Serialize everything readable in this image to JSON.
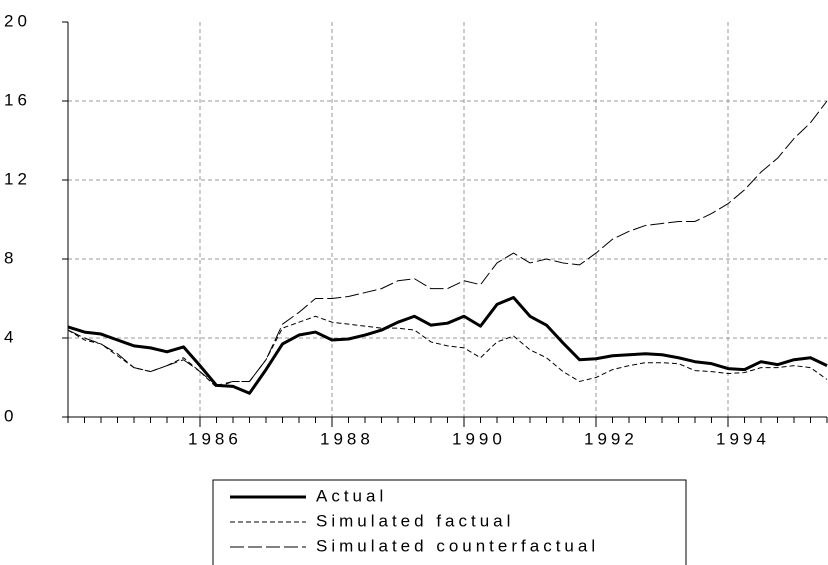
{
  "chart_data": {
    "type": "line",
    "x": [
      1984,
      1984.25,
      1984.5,
      1984.75,
      1985,
      1985.25,
      1985.5,
      1985.75,
      1986,
      1986.25,
      1986.5,
      1986.75,
      1987,
      1987.25,
      1987.5,
      1987.75,
      1988,
      1988.25,
      1988.5,
      1988.75,
      1989,
      1989.25,
      1989.5,
      1989.75,
      1990,
      1990.25,
      1990.5,
      1990.75,
      1991,
      1991.25,
      1991.5,
      1991.75,
      1992,
      1992.25,
      1992.5,
      1992.75,
      1993,
      1993.25,
      1993.5,
      1993.75,
      1994,
      1994.25,
      1994.5,
      1994.75,
      1995,
      1995.25,
      1995.5
    ],
    "xlim": [
      1984,
      1995.5
    ],
    "xticks": [
      1986,
      1988,
      1990,
      1992,
      1994
    ],
    "ylim": [
      0,
      20
    ],
    "yticks": [
      0,
      4,
      8,
      12,
      16,
      20
    ],
    "grid": true,
    "legend": "bottom",
    "series": [
      {
        "name": "Actual",
        "color": "#000000",
        "line_style": "solid",
        "line_width": 3,
        "values": [
          4.56,
          4.3,
          4.2,
          3.9,
          3.6,
          3.5,
          3.3,
          3.55,
          2.6,
          1.6,
          1.55,
          1.2,
          2.4,
          3.7,
          4.15,
          4.3,
          3.9,
          3.95,
          4.15,
          4.4,
          4.8,
          5.1,
          4.65,
          4.75,
          5.1,
          4.6,
          5.7,
          6.05,
          5.1,
          4.65,
          3.75,
          2.9,
          2.95,
          3.1,
          3.15,
          3.2,
          3.15,
          3.0,
          2.8,
          2.7,
          2.45,
          2.4,
          2.8,
          2.65,
          2.9,
          3.0,
          2.6
        ]
      },
      {
        "name": "Simulated factual",
        "color": "#000000",
        "line_style": "short-dash",
        "line_width": 1,
        "values": [
          4.4,
          3.9,
          3.7,
          3.1,
          2.5,
          2.3,
          2.6,
          3.0,
          2.3,
          1.5,
          1.8,
          1.8,
          2.9,
          4.5,
          4.8,
          5.1,
          4.8,
          4.7,
          4.6,
          4.5,
          4.5,
          4.4,
          3.8,
          3.6,
          3.5,
          3.0,
          3.8,
          4.1,
          3.4,
          3.0,
          2.3,
          1.8,
          2.0,
          2.4,
          2.6,
          2.75,
          2.75,
          2.7,
          2.35,
          2.3,
          2.2,
          2.25,
          2.5,
          2.5,
          2.6,
          2.5,
          1.9
        ]
      },
      {
        "name": "Simulated counterfactual",
        "color": "#000000",
        "line_style": "long-dash",
        "line_width": 1,
        "values": [
          4.4,
          4.0,
          3.7,
          3.2,
          2.5,
          2.3,
          2.6,
          2.9,
          2.3,
          1.6,
          1.8,
          1.8,
          2.9,
          4.7,
          5.3,
          6.0,
          6.0,
          6.1,
          6.3,
          6.5,
          6.9,
          7.0,
          6.5,
          6.5,
          6.9,
          6.7,
          7.8,
          8.3,
          7.8,
          8.0,
          7.8,
          7.7,
          8.3,
          9.0,
          9.4,
          9.7,
          9.8,
          9.9,
          9.9,
          10.3,
          10.8,
          11.5,
          12.4,
          13.1,
          14.1,
          14.9,
          16.0
        ]
      }
    ]
  }
}
